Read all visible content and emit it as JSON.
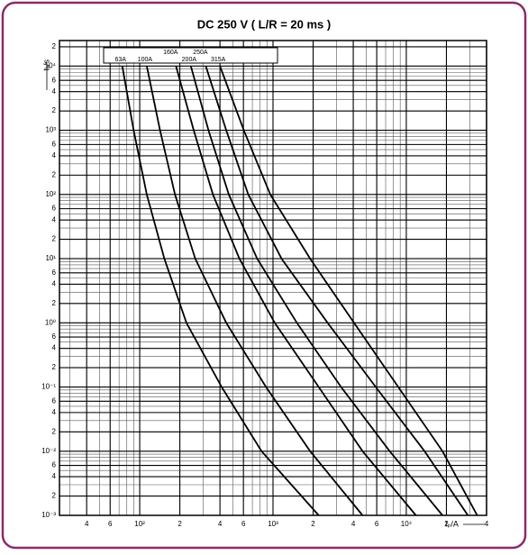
{
  "chart_data": {
    "type": "line",
    "title": "DC 250 V  ( L/R = 20 ms )",
    "y_label": "tᵥ/s",
    "x_label": "Iₚ/A",
    "xscale": "log",
    "yscale": "log",
    "grid": true,
    "color": "#000000",
    "xlim": [
      25,
      40000
    ],
    "ylim": [
      0.001,
      25000
    ],
    "xticks": [
      {
        "value": 40,
        "label": "4"
      },
      {
        "value": 60,
        "label": "6"
      },
      {
        "value": 100,
        "label": "10²"
      },
      {
        "value": 200,
        "label": "2"
      },
      {
        "value": 400,
        "label": "4"
      },
      {
        "value": 600,
        "label": "6"
      },
      {
        "value": 1000,
        "label": "10³"
      },
      {
        "value": 2000,
        "label": "2"
      },
      {
        "value": 4000,
        "label": "4"
      },
      {
        "value": 6000,
        "label": "6"
      },
      {
        "value": 10000,
        "label": "10⁴"
      },
      {
        "value": 20000,
        "label": "2"
      },
      {
        "value": 40000,
        "label": "4"
      }
    ],
    "yticks": [
      {
        "value": 0.001,
        "label": "10⁻³"
      },
      {
        "value": 0.002,
        "label": "2"
      },
      {
        "value": 0.004,
        "label": "4"
      },
      {
        "value": 0.006,
        "label": "6"
      },
      {
        "value": 0.01,
        "label": "10⁻²"
      },
      {
        "value": 0.02,
        "label": "2"
      },
      {
        "value": 0.04,
        "label": "4"
      },
      {
        "value": 0.06,
        "label": "6"
      },
      {
        "value": 0.1,
        "label": "10⁻¹"
      },
      {
        "value": 0.2,
        "label": "2"
      },
      {
        "value": 0.4,
        "label": "4"
      },
      {
        "value": 0.6,
        "label": "6"
      },
      {
        "value": 1,
        "label": "10⁰"
      },
      2,
      4,
      6,
      {
        "value": 10,
        "label": "10¹"
      },
      {
        "value": 20,
        "label": "2"
      },
      {
        "value": 40,
        "label": "4"
      },
      {
        "value": 60,
        "label": "6"
      },
      {
        "value": 100,
        "label": "10²"
      },
      {
        "value": 200,
        "label": "2"
      },
      {
        "value": 400,
        "label": "4"
      },
      {
        "value": 600,
        "label": "6"
      },
      {
        "value": 1000,
        "label": "10³"
      },
      {
        "value": 2000,
        "label": "2"
      },
      {
        "value": 4000,
        "label": "4"
      },
      {
        "value": 6000,
        "label": "6"
      },
      {
        "value": 10000,
        "label": "10⁴"
      },
      {
        "value": 20000,
        "label": "2"
      }
    ],
    "series": [
      {
        "name": "63A",
        "x": [
          74,
          90,
          113,
          153,
          224,
          412,
          820,
          2200
        ],
        "values": [
          10000,
          1000,
          100,
          10,
          1,
          0.1,
          0.01,
          0.001
        ]
      },
      {
        "name": "100A",
        "x": [
          113,
          142,
          184,
          261,
          446,
          885,
          1900,
          4700
        ],
        "values": [
          10000,
          1000,
          100,
          10,
          1,
          0.1,
          0.01,
          0.001
        ]
      },
      {
        "name": "160A",
        "x": [
          187,
          254,
          354,
          560,
          1030,
          2200,
          4700,
          11800
        ],
        "values": [
          10000,
          1000,
          100,
          10,
          1,
          0.1,
          0.01,
          0.001
        ]
      },
      {
        "name": "200A",
        "x": [
          242,
          328,
          466,
          760,
          1510,
          3240,
          7500,
          18700
        ],
        "values": [
          10000,
          1000,
          100,
          10,
          1,
          0.1,
          0.01,
          0.001
        ]
      },
      {
        "name": "250A",
        "x": [
          313,
          446,
          652,
          1160,
          2570,
          5900,
          13700,
          29000
        ],
        "values": [
          10000,
          1000,
          100,
          10,
          1,
          0.1,
          0.01,
          0.001
        ]
      },
      {
        "name": "315A",
        "x": [
          400,
          604,
          955,
          1900,
          4050,
          8700,
          18700,
          34000
        ],
        "values": [
          10000,
          1000,
          100,
          10,
          1,
          0.1,
          0.01,
          0.001
        ]
      }
    ]
  }
}
